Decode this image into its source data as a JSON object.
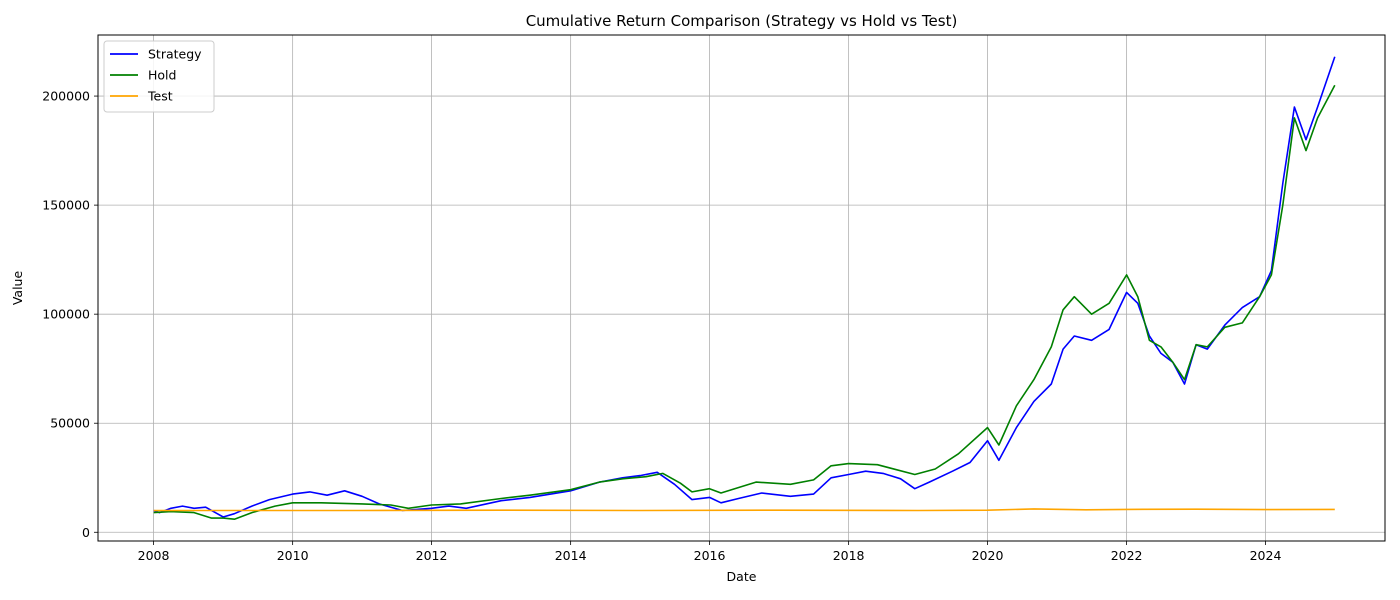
{
  "chart_data": {
    "type": "line",
    "title": "Cumulative Return Comparison (Strategy vs Hold vs Test)",
    "xlabel": "Date",
    "ylabel": "Value",
    "xlim": [
      "2007-03-15",
      "2025-09-20"
    ],
    "ylim": [
      -4000,
      228000
    ],
    "x_ticks": [
      "2008",
      "2010",
      "2012",
      "2014",
      "2016",
      "2018",
      "2020",
      "2022",
      "2024"
    ],
    "y_ticks": [
      0,
      50000,
      100000,
      150000,
      200000
    ],
    "grid": true,
    "legend_position": "top-left",
    "series": [
      {
        "name": "Strategy",
        "color": "#0000ff",
        "points": [
          [
            "2008-01-02",
            10000
          ],
          [
            "2008-02-01",
            9000
          ],
          [
            "2008-04-01",
            11000
          ],
          [
            "2008-06-01",
            12000
          ],
          [
            "2008-08-01",
            11000
          ],
          [
            "2008-10-01",
            11500
          ],
          [
            "2008-12-01",
            8500
          ],
          [
            "2009-01-01",
            7000
          ],
          [
            "2009-03-01",
            8500
          ],
          [
            "2009-06-01",
            12000
          ],
          [
            "2009-09-01",
            15000
          ],
          [
            "2010-01-01",
            17500
          ],
          [
            "2010-04-01",
            18500
          ],
          [
            "2010-07-01",
            17000
          ],
          [
            "2010-10-01",
            19000
          ],
          [
            "2011-01-01",
            16500
          ],
          [
            "2011-04-01",
            13000
          ],
          [
            "2011-08-01",
            10000
          ],
          [
            "2012-01-01",
            11000
          ],
          [
            "2012-04-01",
            12000
          ],
          [
            "2012-07-01",
            11000
          ],
          [
            "2013-01-01",
            14500
          ],
          [
            "2013-06-01",
            16000
          ],
          [
            "2014-01-01",
            19000
          ],
          [
            "2014-06-01",
            23000
          ],
          [
            "2014-10-01",
            25000
          ],
          [
            "2015-01-01",
            26000
          ],
          [
            "2015-04-01",
            27500
          ],
          [
            "2015-07-01",
            22000
          ],
          [
            "2015-10-01",
            15000
          ],
          [
            "2016-01-01",
            16000
          ],
          [
            "2016-03-01",
            13500
          ],
          [
            "2016-06-01",
            15500
          ],
          [
            "2016-10-01",
            18000
          ],
          [
            "2017-03-01",
            16500
          ],
          [
            "2017-07-01",
            17500
          ],
          [
            "2017-10-01",
            25000
          ],
          [
            "2018-01-01",
            26500
          ],
          [
            "2018-04-01",
            28000
          ],
          [
            "2018-07-01",
            27000
          ],
          [
            "2018-10-01",
            24500
          ],
          [
            "2018-12-15",
            20000
          ],
          [
            "2019-03-01",
            23000
          ],
          [
            "2019-07-01",
            28000
          ],
          [
            "2019-10-01",
            32000
          ],
          [
            "2020-01-01",
            42000
          ],
          [
            "2020-03-01",
            33000
          ],
          [
            "2020-06-01",
            48000
          ],
          [
            "2020-09-01",
            60000
          ],
          [
            "2020-12-01",
            68000
          ],
          [
            "2021-02-01",
            84000
          ],
          [
            "2021-04-01",
            90000
          ],
          [
            "2021-07-01",
            88000
          ],
          [
            "2021-10-01",
            93000
          ],
          [
            "2022-01-01",
            110000
          ],
          [
            "2022-03-01",
            105000
          ],
          [
            "2022-05-01",
            90000
          ],
          [
            "2022-07-01",
            82000
          ],
          [
            "2022-09-01",
            78000
          ],
          [
            "2022-11-01",
            68000
          ],
          [
            "2023-01-01",
            86000
          ],
          [
            "2023-03-01",
            84000
          ],
          [
            "2023-06-01",
            95000
          ],
          [
            "2023-09-01",
            103000
          ],
          [
            "2023-12-01",
            108000
          ],
          [
            "2024-02-01",
            120000
          ],
          [
            "2024-04-01",
            160000
          ],
          [
            "2024-06-01",
            195000
          ],
          [
            "2024-08-01",
            180000
          ],
          [
            "2024-10-01",
            195000
          ],
          [
            "2024-12-30",
            218000
          ]
        ]
      },
      {
        "name": "Hold",
        "color": "#008000",
        "points": [
          [
            "2008-01-02",
            9000
          ],
          [
            "2008-04-01",
            9500
          ],
          [
            "2008-08-01",
            9000
          ],
          [
            "2008-11-01",
            6500
          ],
          [
            "2009-01-01",
            6500
          ],
          [
            "2009-03-01",
            6000
          ],
          [
            "2009-06-01",
            9000
          ],
          [
            "2009-10-01",
            12000
          ],
          [
            "2010-01-01",
            13500
          ],
          [
            "2010-06-01",
            13500
          ],
          [
            "2011-01-01",
            13000
          ],
          [
            "2011-06-01",
            12500
          ],
          [
            "2011-09-01",
            11000
          ],
          [
            "2012-01-01",
            12500
          ],
          [
            "2012-06-01",
            13000
          ],
          [
            "2013-01-01",
            15500
          ],
          [
            "2013-06-01",
            17000
          ],
          [
            "2014-01-01",
            19500
          ],
          [
            "2014-06-01",
            23000
          ],
          [
            "2014-10-01",
            24500
          ],
          [
            "2015-02-01",
            25500
          ],
          [
            "2015-05-01",
            27000
          ],
          [
            "2015-08-01",
            22500
          ],
          [
            "2015-10-01",
            18500
          ],
          [
            "2016-01-01",
            20000
          ],
          [
            "2016-03-01",
            18000
          ],
          [
            "2016-09-01",
            23000
          ],
          [
            "2017-03-01",
            22000
          ],
          [
            "2017-07-01",
            24000
          ],
          [
            "2017-10-01",
            30500
          ],
          [
            "2018-01-01",
            31500
          ],
          [
            "2018-06-01",
            31000
          ],
          [
            "2018-12-15",
            26500
          ],
          [
            "2019-04-01",
            29000
          ],
          [
            "2019-08-01",
            36000
          ],
          [
            "2020-01-01",
            48000
          ],
          [
            "2020-03-01",
            40000
          ],
          [
            "2020-06-01",
            58000
          ],
          [
            "2020-09-01",
            70000
          ],
          [
            "2020-12-01",
            85000
          ],
          [
            "2021-02-01",
            102000
          ],
          [
            "2021-04-01",
            108000
          ],
          [
            "2021-07-01",
            100000
          ],
          [
            "2021-10-01",
            105000
          ],
          [
            "2022-01-01",
            118000
          ],
          [
            "2022-03-01",
            108000
          ],
          [
            "2022-05-01",
            88000
          ],
          [
            "2022-07-01",
            85000
          ],
          [
            "2022-09-01",
            78000
          ],
          [
            "2022-11-01",
            70000
          ],
          [
            "2023-01-01",
            86000
          ],
          [
            "2023-03-01",
            85000
          ],
          [
            "2023-06-01",
            94000
          ],
          [
            "2023-09-01",
            96000
          ],
          [
            "2023-12-01",
            108000
          ],
          [
            "2024-02-01",
            118000
          ],
          [
            "2024-04-01",
            150000
          ],
          [
            "2024-06-01",
            190000
          ],
          [
            "2024-08-01",
            175000
          ],
          [
            "2024-10-01",
            190000
          ],
          [
            "2024-12-30",
            205000
          ]
        ]
      },
      {
        "name": "Test",
        "color": "#ffa500",
        "points": [
          [
            "2008-01-02",
            10000
          ],
          [
            "2009-01-01",
            10000
          ],
          [
            "2011-01-01",
            10000
          ],
          [
            "2013-01-01",
            10100
          ],
          [
            "2015-01-01",
            10000
          ],
          [
            "2017-01-01",
            10100
          ],
          [
            "2019-01-01",
            10000
          ],
          [
            "2020-01-01",
            10100
          ],
          [
            "2020-09-01",
            10700
          ],
          [
            "2021-06-01",
            10300
          ],
          [
            "2022-01-01",
            10500
          ],
          [
            "2023-01-01",
            10600
          ],
          [
            "2024-01-01",
            10400
          ],
          [
            "2024-12-30",
            10500
          ]
        ]
      }
    ]
  }
}
